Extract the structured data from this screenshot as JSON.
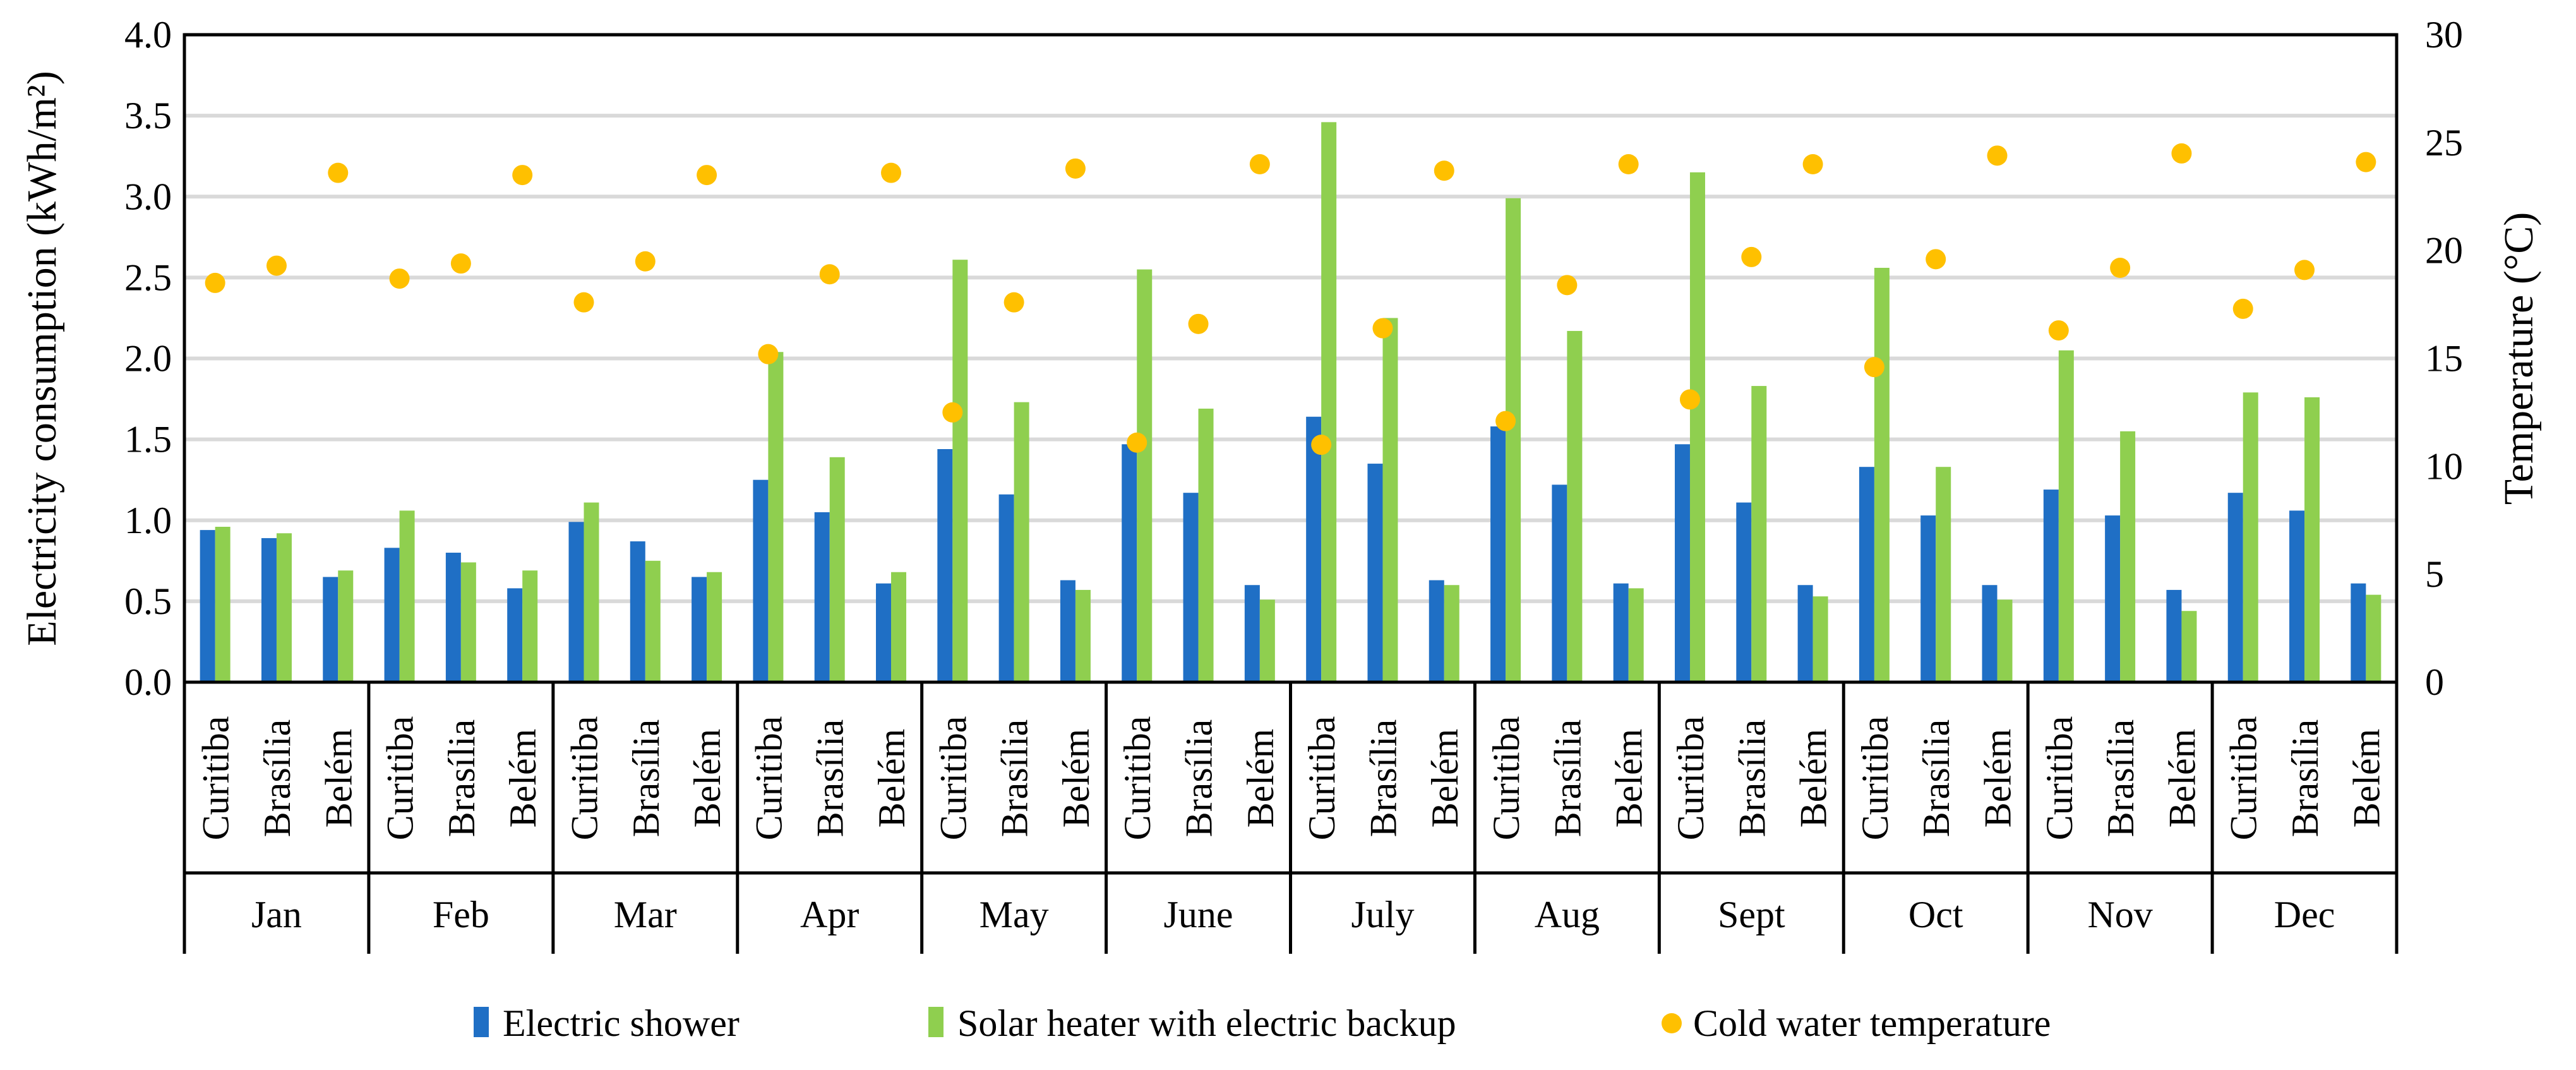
{
  "chart_data": {
    "type": "bar",
    "title": "",
    "ylabel": "Electricity consumption (kWh/m²)",
    "y2label": "Temperature (°C)",
    "ylim": [
      0,
      4.0
    ],
    "y2lim": [
      0,
      30
    ],
    "yticks": [
      "0.0",
      "0.5",
      "1.0",
      "1.5",
      "2.0",
      "2.5",
      "3.0",
      "3.5",
      "4.0"
    ],
    "y2ticks": [
      "0",
      "5",
      "10",
      "15",
      "20",
      "25",
      "30"
    ],
    "grid": true,
    "legend_position": "bottom",
    "months": [
      "Jan",
      "Feb",
      "Mar",
      "Apr",
      "May",
      "June",
      "July",
      "Aug",
      "Sept",
      "Oct",
      "Nov",
      "Dec"
    ],
    "cities": [
      "Curitiba",
      "Brasília",
      "Belém"
    ],
    "series": [
      {
        "name": "Electric shower",
        "kind": "bar",
        "axis": "left",
        "color": "#1f6fc5",
        "values": [
          0.94,
          0.89,
          0.65,
          0.83,
          0.8,
          0.58,
          0.99,
          0.87,
          0.65,
          1.25,
          1.05,
          0.61,
          1.44,
          1.16,
          0.63,
          1.47,
          1.17,
          0.6,
          1.64,
          1.35,
          0.63,
          1.58,
          1.22,
          0.61,
          1.47,
          1.11,
          0.6,
          1.33,
          1.03,
          0.6,
          1.19,
          1.03,
          0.57,
          1.17,
          1.06,
          0.61
        ]
      },
      {
        "name": "Solar heater with electric backup",
        "kind": "bar",
        "axis": "left",
        "color": "#8fcf4f",
        "values": [
          0.96,
          0.92,
          0.69,
          1.06,
          0.74,
          0.69,
          1.11,
          0.75,
          0.68,
          2.04,
          1.39,
          0.68,
          2.61,
          1.73,
          0.57,
          2.55,
          1.69,
          0.51,
          3.46,
          2.25,
          0.6,
          2.99,
          2.17,
          0.58,
          3.15,
          1.83,
          0.53,
          2.56,
          1.33,
          0.51,
          2.05,
          1.55,
          0.44,
          1.79,
          1.76,
          0.54
        ]
      },
      {
        "name": "Cold water temperature",
        "kind": "scatter",
        "axis": "right",
        "color": "#ffc000",
        "values": [
          18.5,
          19.3,
          23.6,
          18.7,
          19.4,
          23.5,
          17.6,
          19.5,
          23.5,
          15.2,
          18.9,
          23.6,
          12.5,
          17.6,
          23.8,
          11.1,
          16.6,
          24.0,
          11.0,
          16.4,
          23.7,
          12.1,
          18.4,
          24.0,
          13.1,
          19.7,
          24.0,
          14.6,
          19.6,
          24.4,
          16.3,
          19.2,
          24.5,
          17.3,
          19.1,
          24.1
        ]
      }
    ]
  }
}
